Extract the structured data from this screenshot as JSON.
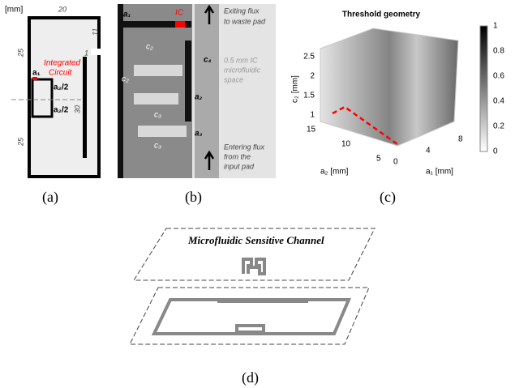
{
  "panel_a": {
    "unit": "[mm]",
    "width": "20",
    "top_right": "11",
    "gap": "1",
    "left_top": "25",
    "left_bottom": "25",
    "ic_line1": "Integrated",
    "ic_line2": "Circuit",
    "a1": "a₁",
    "half_a2_top": "a₂/2",
    "half_a2_bottom": "a₂/2",
    "height": "30",
    "caption": "(a)"
  },
  "panel_b": {
    "a1": "a₁",
    "ic": "IC",
    "c2_top": "c₂",
    "c4": "c₄",
    "c2_left": "c₂",
    "a2": "a₂",
    "c3_top": "c₃",
    "a3": "a₃",
    "c3_bottom": "c₃",
    "exit_line1": "Exiting  flux",
    "exit_line2": "to waste pad",
    "space_line1": "0.5  mm  IC",
    "space_line2": "microfluidic",
    "space_line3": "space",
    "enter_line1": "Entering flux",
    "enter_line2": "from        the",
    "enter_line3": "input pad",
    "caption": "(b)"
  },
  "panel_c": {
    "title": "Threshold geometry",
    "colorbar_ticks": [
      "1",
      "0.8",
      "0.6",
      "0.4",
      "0.2",
      "0"
    ],
    "z_ticks": [
      "2.5",
      "2",
      "1.5",
      "1"
    ],
    "z_label": "c₂ [mm]",
    "a2_ticks": [
      "15",
      "10",
      "5"
    ],
    "a2_label": "a₂ [mm]",
    "a1_ticks": [
      "0",
      "4",
      "8"
    ],
    "a1_label": "a₁ [mm]",
    "caption": "(c)"
  },
  "panel_d": {
    "channel_label": "Microfluidic Sensitive Channel",
    "caption": "(d)"
  }
}
